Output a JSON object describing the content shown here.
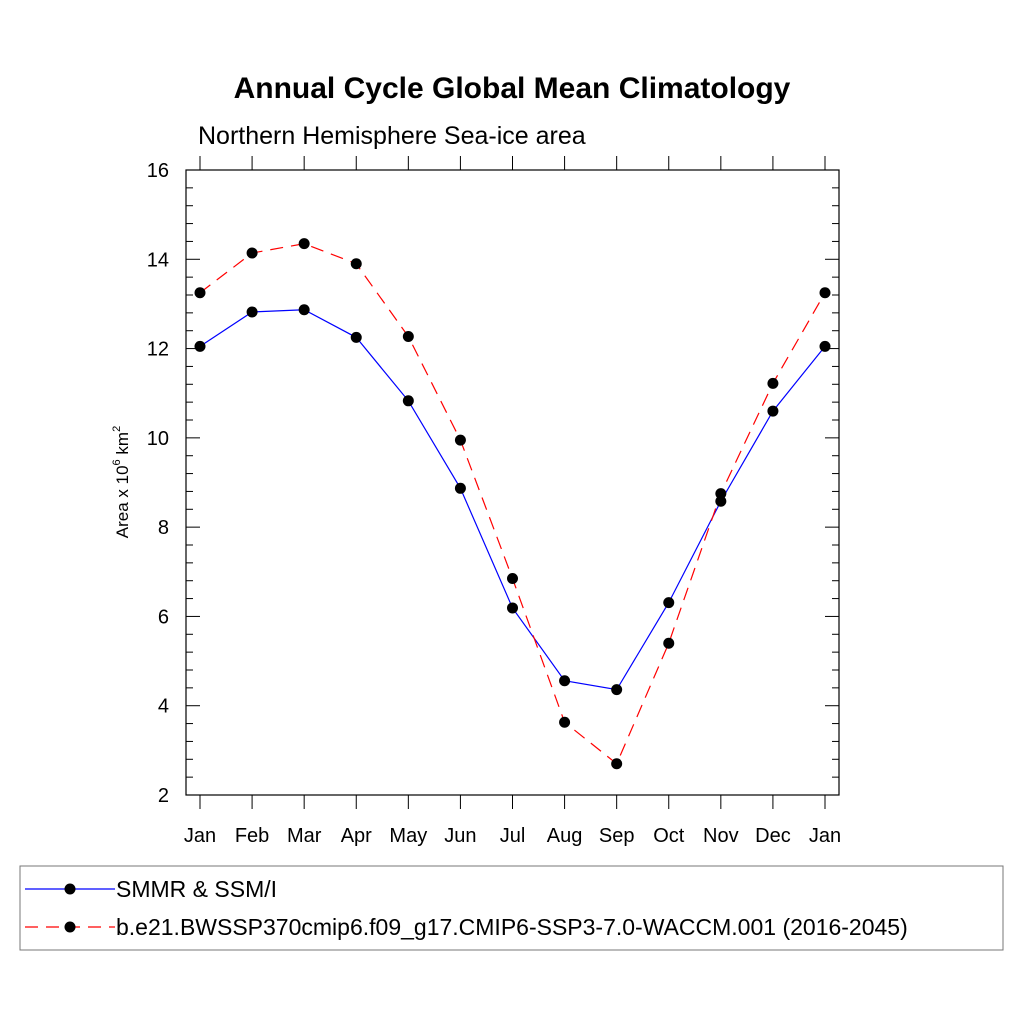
{
  "chart_data": {
    "type": "line",
    "title": "Annual Cycle Global Mean Climatology",
    "subtitle": "Northern Hemisphere Sea-ice area",
    "ylabel_base": "Area x 10",
    "ylabel_exp": "6",
    "ylabel_unit": " km",
    "ylabel_unit_exp": "2",
    "categories": [
      "Jan",
      "Feb",
      "Mar",
      "Apr",
      "May",
      "Jun",
      "Jul",
      "Aug",
      "Sep",
      "Oct",
      "Nov",
      "Dec",
      "Jan"
    ],
    "ylim": [
      2,
      16
    ],
    "yticks": [
      "2",
      "4",
      "6",
      "8",
      "10",
      "12",
      "14",
      "16"
    ],
    "grid": false,
    "legend_position": "bottom",
    "series": [
      {
        "name": "SMMR & SSM/I",
        "color": "#0000ff",
        "dash": "solid",
        "values": [
          12.05,
          12.82,
          12.87,
          12.25,
          10.83,
          8.87,
          6.19,
          4.56,
          4.36,
          6.31,
          8.58,
          10.6,
          12.05
        ]
      },
      {
        "name": "b.e21.BWSSP370cmip6.f09_g17.CMIP6-SSP3-7.0-WACCM.001 (2016-2045)",
        "color": "#ff0000",
        "dash": "dashed",
        "values": [
          13.25,
          14.14,
          14.35,
          13.9,
          12.27,
          9.95,
          6.85,
          3.63,
          2.7,
          5.4,
          8.75,
          11.22,
          13.25
        ]
      }
    ]
  }
}
